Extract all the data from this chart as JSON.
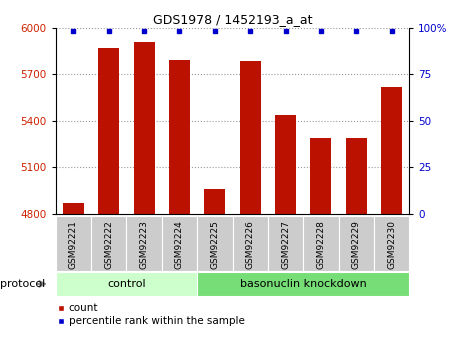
{
  "title": "GDS1978 / 1452193_a_at",
  "samples": [
    "GSM92221",
    "GSM92222",
    "GSM92223",
    "GSM92224",
    "GSM92225",
    "GSM92226",
    "GSM92227",
    "GSM92228",
    "GSM92229",
    "GSM92230"
  ],
  "counts": [
    4870,
    5870,
    5905,
    5790,
    4960,
    5785,
    5440,
    5290,
    5290,
    5620
  ],
  "percentiles": [
    100,
    100,
    100,
    100,
    100,
    100,
    100,
    100,
    100,
    100
  ],
  "bar_color": "#bb1100",
  "dot_color": "#0000cc",
  "ylim_left": [
    4800,
    6000
  ],
  "ylim_right": [
    0,
    100
  ],
  "yticks_left": [
    4800,
    5100,
    5400,
    5700,
    6000
  ],
  "yticks_right": [
    0,
    25,
    50,
    75,
    100
  ],
  "ytick_labels_right": [
    "0",
    "25",
    "50",
    "75",
    "100%"
  ],
  "groups": [
    {
      "label": "control",
      "start": 0,
      "end": 3,
      "color": "#ccffcc"
    },
    {
      "label": "basonuclin knockdown",
      "start": 4,
      "end": 9,
      "color": "#77dd77"
    }
  ],
  "protocol_label": "protocol",
  "legend": [
    {
      "label": "count",
      "color": "#bb1100"
    },
    {
      "label": "percentile rank within the sample",
      "color": "#0000cc"
    }
  ],
  "background_color": "#ffffff",
  "tick_label_color_left": "#cc2200",
  "tick_label_color_right": "#0000cc",
  "bar_width": 0.6,
  "grid_color": "#999999",
  "header_area_color": "#cccccc",
  "title_fontsize": 9,
  "axis_fontsize": 7.5,
  "sample_fontsize": 6.5,
  "group_fontsize": 8
}
